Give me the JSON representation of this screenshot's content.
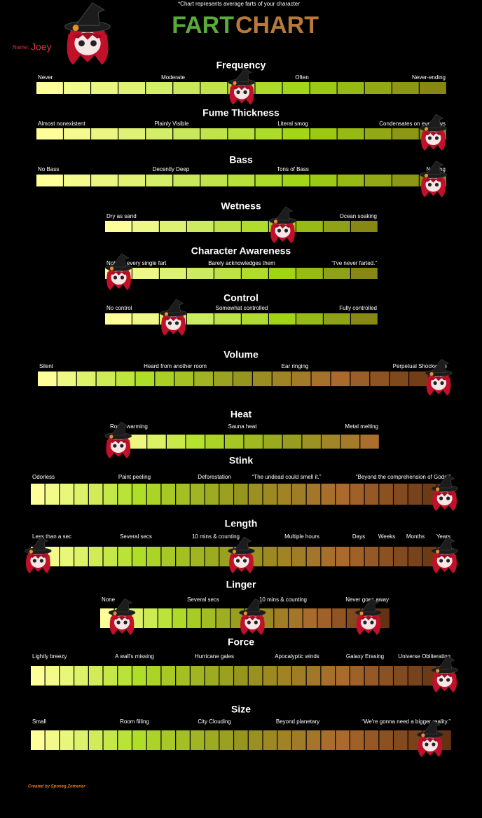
{
  "note": "*Chart represents average farts of your character",
  "title": {
    "left": "FART",
    "right": "CHART"
  },
  "name_label": "Name:",
  "name": "Joey",
  "scales": [
    {
      "title": "Frequency",
      "labels": [
        "Never",
        "Moderate",
        "Often",
        "Never-ending"
      ],
      "markers": [
        8
      ]
    },
    {
      "title": "Fume Thickness",
      "labels": [
        "Almost nonexistent",
        "Plainly Visible",
        "Literal smog",
        "Condensates on eyebrows"
      ],
      "markers": [
        15
      ]
    },
    {
      "title": "Bass",
      "labels": [
        "No Bass",
        "Decently Deep",
        "Tons of Bass",
        "Nothing"
      ],
      "markers": [
        15
      ]
    },
    {
      "title": "Wetness",
      "labels": [
        "Dry as sand",
        "Ocean soaking"
      ],
      "markers": [
        7
      ]
    },
    {
      "title": "Character Awareness",
      "labels": [
        "Notices every single fart",
        "Barely acknowledges them",
        "“I've never farted.”"
      ],
      "markers": [
        1
      ]
    },
    {
      "title": "Control",
      "labels": [
        "No control",
        "Somewhat controlled",
        "Fully controlled"
      ],
      "markers": [
        3
      ]
    },
    {
      "title": "Volume",
      "labels": [
        "Silent",
        "Heard from another room",
        "Ear ringing",
        "Perpetual Shockwave"
      ],
      "markers": [
        21
      ]
    },
    {
      "title": "Heat",
      "labels": [
        "Room warming",
        "Sauna heat",
        "Metal melting"
      ],
      "markers": [
        1
      ]
    },
    {
      "title": "Stink",
      "labels": [
        "Odorless",
        "Paint peeling",
        "Deforestation",
        "“The undead could smell it.”",
        "“Beyond the comprehension of Gods.”"
      ],
      "markers": [
        29
      ]
    },
    {
      "title": "Length",
      "labels": [
        "Less than a sec",
        "Several secs",
        "10 mins & counting",
        "Multiple hours",
        "Days",
        "Weeks",
        "Months",
        "Years"
      ],
      "markers": [
        1,
        15,
        29
      ]
    },
    {
      "title": "Linger",
      "labels": [
        "None",
        "Several secs",
        "10 mins & counting",
        "Never goes away"
      ],
      "markers": [
        2,
        11,
        19
      ]
    },
    {
      "title": "Force",
      "labels": [
        "Lightly breezy",
        "A wall's missing",
        "Hurricane gales",
        "Apocalyptic winds",
        "Galaxy Erasing",
        "Universe Obliterating"
      ],
      "markers": [
        29
      ]
    },
    {
      "title": "Size",
      "labels": [
        "Small",
        "Room filling",
        "City Clouding",
        "Beyond planetary",
        "“We're gonna need a bigger reality.”"
      ],
      "markers": [
        28
      ]
    }
  ],
  "credit": "Created by Sponeg Zomenar"
}
